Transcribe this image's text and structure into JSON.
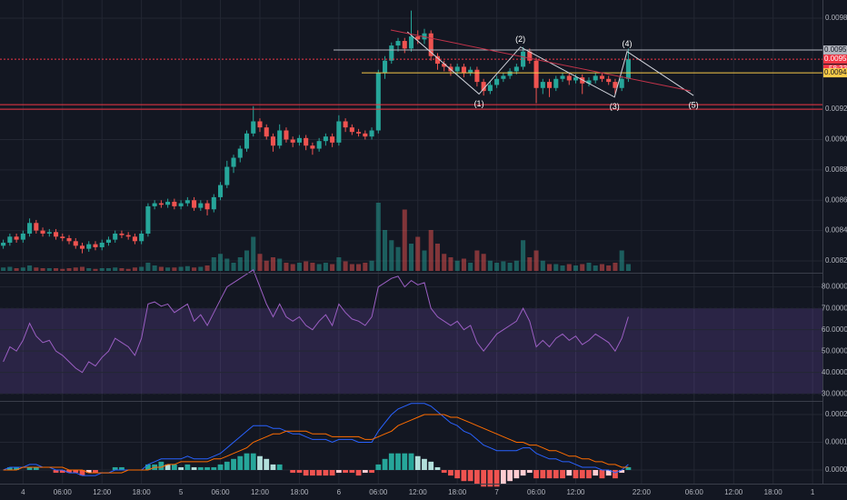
{
  "chart_data": {
    "type": "candlestick",
    "up_color": "#26a69a",
    "down_color": "#ef5350",
    "x": [
      -3,
      -2,
      -1,
      0,
      1,
      2,
      3,
      4,
      5,
      6,
      7,
      8,
      9,
      10,
      11,
      12,
      13,
      14,
      15,
      16,
      17,
      18,
      19,
      20,
      21,
      22,
      23,
      24,
      25,
      26,
      27,
      28,
      29,
      30,
      31,
      32,
      33,
      34,
      35,
      36,
      37,
      38,
      39,
      40,
      41,
      42,
      43,
      44,
      45,
      46,
      47,
      48,
      49,
      50,
      51,
      52,
      53,
      54,
      55,
      56,
      57,
      58,
      59,
      60,
      61,
      62,
      63,
      64,
      65,
      66,
      67,
      68,
      69,
      70,
      71,
      72,
      73,
      74,
      75,
      76,
      77,
      78,
      79,
      80,
      81,
      82,
      83,
      84,
      85,
      86,
      87,
      88,
      89,
      90,
      91,
      92
    ],
    "open": [
      0.0083,
      0.00832,
      0.00836,
      0.00834,
      0.00838,
      0.00845,
      0.0084,
      0.00838,
      0.00839,
      0.00836,
      0.00835,
      0.00833,
      0.0083,
      0.00828,
      0.00831,
      0.00829,
      0.00832,
      0.00834,
      0.00838,
      0.00837,
      0.00836,
      0.00833,
      0.00838,
      0.00856,
      0.00858,
      0.00857,
      0.00859,
      0.00856,
      0.00858,
      0.0086,
      0.00855,
      0.00858,
      0.00854,
      0.00862,
      0.0087,
      0.00882,
      0.00888,
      0.00894,
      0.00904,
      0.00912,
      0.00908,
      0.00902,
      0.00896,
      0.00906,
      0.009,
      0.00898,
      0.00901,
      0.00896,
      0.00894,
      0.00899,
      0.00902,
      0.00898,
      0.00912,
      0.00908,
      0.00905,
      0.00904,
      0.00902,
      0.00906,
      0.00944,
      0.00952,
      0.00962,
      0.00965,
      0.0096,
      0.00968,
      0.00966,
      0.0097,
      0.00955,
      0.0095,
      0.00948,
      0.00945,
      0.00948,
      0.00944,
      0.00946,
      0.00938,
      0.00932,
      0.00936,
      0.0094,
      0.00942,
      0.00945,
      0.00948,
      0.00958,
      0.00952,
      0.00934,
      0.00938,
      0.00934,
      0.0094,
      0.00942,
      0.00939,
      0.00941,
      0.00937,
      0.00939,
      0.00942,
      0.0094,
      0.00938,
      0.00934,
      0.0094
    ],
    "high": [
      0.00834,
      0.00838,
      0.00838,
      0.0084,
      0.00848,
      0.00847,
      0.00842,
      0.00841,
      0.00841,
      0.00838,
      0.00837,
      0.00835,
      0.00832,
      0.00833,
      0.00833,
      0.00834,
      0.00836,
      0.0084,
      0.0084,
      0.00839,
      0.00838,
      0.0084,
      0.00858,
      0.0086,
      0.0086,
      0.00861,
      0.00861,
      0.0086,
      0.00862,
      0.00862,
      0.0086,
      0.0086,
      0.00864,
      0.00872,
      0.00886,
      0.0089,
      0.00896,
      0.00906,
      0.00922,
      0.00914,
      0.0091,
      0.00904,
      0.0091,
      0.00908,
      0.00902,
      0.00903,
      0.00903,
      0.00898,
      0.00901,
      0.00904,
      0.00904,
      0.00916,
      0.00914,
      0.0091,
      0.00907,
      0.00906,
      0.00908,
      0.00946,
      0.00955,
      0.00964,
      0.00967,
      0.00967,
      0.00985,
      0.00972,
      0.00973,
      0.00972,
      0.00957,
      0.00952,
      0.0095,
      0.0095,
      0.0095,
      0.00948,
      0.00948,
      0.0094,
      0.00938,
      0.00942,
      0.00944,
      0.00947,
      0.0095,
      0.00961,
      0.0096,
      0.00954,
      0.0094,
      0.0094,
      0.00942,
      0.00944,
      0.00944,
      0.00943,
      0.00943,
      0.00941,
      0.00944,
      0.00944,
      0.00942,
      0.0094,
      0.00942,
      0.0096
    ],
    "low": [
      0.00828,
      0.0083,
      0.00832,
      0.00832,
      0.00836,
      0.00838,
      0.00836,
      0.00836,
      0.00834,
      0.00833,
      0.00831,
      0.00828,
      0.00825,
      0.00826,
      0.00827,
      0.00827,
      0.0083,
      0.00832,
      0.00835,
      0.00834,
      0.00831,
      0.00831,
      0.00836,
      0.00854,
      0.00855,
      0.00855,
      0.00854,
      0.00854,
      0.00856,
      0.00853,
      0.00853,
      0.0085,
      0.00852,
      0.0086,
      0.00868,
      0.00878,
      0.00885,
      0.00892,
      0.00902,
      0.00905,
      0.009,
      0.00892,
      0.00894,
      0.00898,
      0.00895,
      0.00896,
      0.00893,
      0.0089,
      0.00892,
      0.00896,
      0.00895,
      0.00896,
      0.00905,
      0.00903,
      0.00902,
      0.009,
      0.009,
      0.00904,
      0.0094,
      0.0095,
      0.00958,
      0.00957,
      0.00958,
      0.00963,
      0.00963,
      0.00952,
      0.00946,
      0.00945,
      0.00942,
      0.00943,
      0.00941,
      0.00942,
      0.00935,
      0.00929,
      0.0093,
      0.00934,
      0.00938,
      0.0094,
      0.00943,
      0.00946,
      0.0095,
      0.00924,
      0.0093,
      0.00928,
      0.00932,
      0.00938,
      0.00936,
      0.00937,
      0.0093,
      0.00935,
      0.00937,
      0.00938,
      0.00936,
      0.0093,
      0.00932,
      0.00938
    ],
    "close": [
      0.00832,
      0.00836,
      0.00834,
      0.00838,
      0.00845,
      0.0084,
      0.00838,
      0.00839,
      0.00836,
      0.00835,
      0.00833,
      0.0083,
      0.00828,
      0.00831,
      0.00829,
      0.00832,
      0.00834,
      0.00838,
      0.00837,
      0.00836,
      0.00833,
      0.00838,
      0.00856,
      0.00858,
      0.00857,
      0.00859,
      0.00856,
      0.00858,
      0.0086,
      0.00855,
      0.00858,
      0.00854,
      0.00862,
      0.0087,
      0.00882,
      0.00888,
      0.00894,
      0.00904,
      0.00912,
      0.00908,
      0.00902,
      0.00896,
      0.00906,
      0.009,
      0.00898,
      0.00901,
      0.00896,
      0.00894,
      0.00899,
      0.00902,
      0.00898,
      0.00912,
      0.00908,
      0.00905,
      0.00904,
      0.00902,
      0.00906,
      0.00944,
      0.00952,
      0.00962,
      0.00965,
      0.0096,
      0.00968,
      0.00966,
      0.0097,
      0.00955,
      0.0095,
      0.00948,
      0.00945,
      0.00948,
      0.00944,
      0.00946,
      0.00938,
      0.00932,
      0.00936,
      0.0094,
      0.00942,
      0.00945,
      0.00948,
      0.00958,
      0.00952,
      0.00934,
      0.00938,
      0.00934,
      0.0094,
      0.00942,
      0.00939,
      0.00941,
      0.00937,
      0.00939,
      0.00942,
      0.0094,
      0.00938,
      0.00934,
      0.0094,
      0.00953
    ],
    "volume": [
      5,
      6,
      4,
      5,
      8,
      5,
      4,
      4,
      4,
      3,
      4,
      5,
      6,
      4,
      3,
      4,
      4,
      5,
      4,
      3,
      5,
      6,
      12,
      8,
      6,
      5,
      5,
      6,
      7,
      5,
      6,
      8,
      20,
      25,
      18,
      12,
      20,
      30,
      50,
      25,
      15,
      20,
      18,
      12,
      10,
      12,
      14,
      12,
      10,
      12,
      10,
      20,
      14,
      10,
      10,
      12,
      15,
      100,
      60,
      45,
      35,
      90,
      40,
      50,
      30,
      60,
      40,
      25,
      20,
      15,
      18,
      12,
      30,
      25,
      15,
      12,
      14,
      12,
      15,
      45,
      20,
      30,
      15,
      10,
      10,
      8,
      10,
      8,
      10,
      12,
      8,
      10,
      8,
      12,
      30,
      10
    ],
    "xlim": [
      -3.5,
      121.5
    ],
    "xticks": [
      {
        "value": 0,
        "label": "4"
      },
      {
        "value": 6,
        "label": "06:00"
      },
      {
        "value": 12,
        "label": "12:00"
      },
      {
        "value": 18,
        "label": "18:00"
      },
      {
        "value": 24,
        "label": "5"
      },
      {
        "value": 30,
        "label": "06:00"
      },
      {
        "value": 36,
        "label": "12:00"
      },
      {
        "value": 42,
        "label": "18:00"
      },
      {
        "value": 48,
        "label": "6"
      },
      {
        "value": 54,
        "label": "06:00"
      },
      {
        "value": 60,
        "label": "12:00"
      },
      {
        "value": 66,
        "label": "18:00"
      },
      {
        "value": 72,
        "label": "7"
      },
      {
        "value": 78,
        "label": "06:00"
      },
      {
        "value": 84,
        "label": "12:00"
      },
      {
        "value": 94,
        "label": "22:00"
      },
      {
        "value": 102,
        "label": "06:00"
      },
      {
        "value": 108,
        "label": "12:00"
      },
      {
        "value": 114,
        "label": "18:00"
      },
      {
        "value": 120,
        "label": "1"
      }
    ],
    "ylim": [
      0.008122,
      0.00992
    ],
    "yticks": [
      {
        "value": 0.0098,
        "label": "0.00980"
      },
      {
        "value": 0.0092,
        "label": "0.00920"
      },
      {
        "value": 0.009,
        "label": "0.00900"
      },
      {
        "value": 0.0088,
        "label": "0.00880"
      },
      {
        "value": 0.0086,
        "label": "0.00860"
      },
      {
        "value": 0.0084,
        "label": "0.00840"
      },
      {
        "value": 0.0082,
        "label": "0.00820"
      }
    ],
    "grid": true,
    "levels": [
      {
        "value": 0.00959,
        "label": "0.00959",
        "color": "#b2b5be"
      },
      {
        "value": 0.00953,
        "label": "0.00953",
        "color": "#f23645",
        "countdown": "58:33"
      },
      {
        "value": 0.00944,
        "label": "0.00944",
        "color": "#f7c948"
      },
      {
        "value": 0.00923,
        "color": "#f23645"
      },
      {
        "value": 0.0092,
        "color": "#f23645"
      }
    ],
    "waves": [
      {
        "label": null,
        "x": 58.4,
        "price": 0.00971
      },
      {
        "label": "(1)",
        "x": 69.3,
        "price": 0.0093
      },
      {
        "label": "(2)",
        "x": 75.6,
        "price": 0.00961
      },
      {
        "label": "(3)",
        "x": 89.9,
        "price": 0.00928
      },
      {
        "label": "(4)",
        "x": 91.8,
        "price": 0.00958
      },
      {
        "label": "(5)",
        "x": 101.9,
        "price": 0.00929
      }
    ],
    "rsi": {
      "color": "#9c5fc4",
      "values": [
        45,
        52,
        50,
        55,
        63,
        57,
        54,
        55,
        50,
        48,
        45,
        42,
        40,
        45,
        43,
        47,
        50,
        56,
        54,
        52,
        48,
        56,
        72,
        73,
        71,
        72,
        68,
        70,
        72,
        64,
        67,
        62,
        68,
        74,
        80,
        82,
        84,
        86,
        88,
        80,
        72,
        66,
        72,
        66,
        64,
        66,
        62,
        60,
        64,
        67,
        62,
        72,
        68,
        65,
        64,
        62,
        66,
        80,
        82,
        84,
        85,
        80,
        83,
        81,
        82,
        70,
        66,
        64,
        62,
        64,
        60,
        62,
        54,
        50,
        54,
        58,
        60,
        62,
        64,
        70,
        64,
        52,
        55,
        52,
        56,
        58,
        55,
        57,
        53,
        55,
        58,
        56,
        54,
        50,
        56,
        66
      ],
      "band": [
        30,
        70
      ],
      "ylim": [
        27.1,
        85.8
      ],
      "yticks": [
        {
          "value": 80,
          "label": "80.0000"
        },
        {
          "value": 70,
          "label": "70.0000"
        },
        {
          "value": 60,
          "label": "60.0000"
        },
        {
          "value": 50,
          "label": "50.0000"
        },
        {
          "value": 40,
          "label": "40.0000"
        },
        {
          "value": 30,
          "label": "30.0000"
        }
      ]
    },
    "macd": {
      "macd_color": "#2962ff",
      "signal_color": "#ff6d00",
      "macd": [
        0,
        1e-05,
        1e-05,
        1e-05,
        2e-05,
        2e-05,
        1e-05,
        1e-05,
        0,
        0,
        -1e-05,
        -1e-05,
        -2e-05,
        -2e-05,
        -2e-05,
        -1e-05,
        -1e-05,
        0,
        0,
        0,
        0,
        0,
        2e-05,
        3e-05,
        4e-05,
        4e-05,
        4e-05,
        4e-05,
        5e-05,
        4e-05,
        4e-05,
        4e-05,
        5e-05,
        6e-05,
        8e-05,
        0.0001,
        0.00012,
        0.00014,
        0.00016,
        0.00016,
        0.00016,
        0.00015,
        0.00015,
        0.00014,
        0.00013,
        0.00013,
        0.00012,
        0.00011,
        0.00011,
        0.00011,
        0.0001,
        0.00011,
        0.00011,
        0.00011,
        0.0001,
        0.0001,
        0.0001,
        0.00014,
        0.00017,
        0.0002,
        0.00022,
        0.00023,
        0.00024,
        0.00024,
        0.00024,
        0.00023,
        0.00021,
        0.00019,
        0.00017,
        0.00016,
        0.00014,
        0.00013,
        0.00011,
        9e-05,
        8e-05,
        7e-05,
        7e-05,
        7e-05,
        7e-05,
        8e-05,
        8e-05,
        6e-05,
        5e-05,
        4e-05,
        4e-05,
        3e-05,
        3e-05,
        2e-05,
        1e-05,
        1e-05,
        1e-05,
        0,
        0,
        -1e-05,
        0,
        2e-05
      ],
      "signal": [
        0,
        0,
        0,
        1e-05,
        1e-05,
        1e-05,
        1e-05,
        1e-05,
        1e-05,
        1e-05,
        0,
        0,
        0,
        -1e-05,
        -1e-05,
        -1e-05,
        -1e-05,
        -1e-05,
        -1e-05,
        0,
        0,
        0,
        0,
        1e-05,
        1e-05,
        2e-05,
        2e-05,
        3e-05,
        3e-05,
        3e-05,
        3e-05,
        3e-05,
        4e-05,
        4e-05,
        5e-05,
        6e-05,
        7e-05,
        8e-05,
        0.0001,
        0.00011,
        0.00012,
        0.00013,
        0.00013,
        0.00014,
        0.00014,
        0.00014,
        0.00014,
        0.00013,
        0.00013,
        0.00013,
        0.00012,
        0.00012,
        0.00012,
        0.00012,
        0.00012,
        0.00011,
        0.00011,
        0.00012,
        0.00013,
        0.00014,
        0.00016,
        0.00017,
        0.00018,
        0.00019,
        0.0002,
        0.0002,
        0.0002,
        0.0002,
        0.00019,
        0.00019,
        0.00018,
        0.00017,
        0.00016,
        0.00015,
        0.00014,
        0.00013,
        0.00012,
        0.00011,
        0.0001,
        0.0001,
        9e-05,
        9e-05,
        8e-05,
        7e-05,
        7e-05,
        6e-05,
        5e-05,
        5e-05,
        4e-05,
        4e-05,
        3e-05,
        3e-05,
        2e-05,
        2e-05,
        1e-05,
        1e-05
      ],
      "histogram": [
        0,
        1e-05,
        1e-05,
        0,
        1e-05,
        1e-05,
        0,
        0,
        -1e-05,
        -1e-05,
        -1e-05,
        -1e-05,
        -2e-05,
        -1e-05,
        -1e-05,
        0,
        0,
        1e-05,
        1e-05,
        0,
        0,
        0,
        2e-05,
        2e-05,
        3e-05,
        2e-05,
        2e-05,
        1e-05,
        2e-05,
        1e-05,
        1e-05,
        1e-05,
        1e-05,
        2e-05,
        3e-05,
        4e-05,
        5e-05,
        6e-05,
        6e-05,
        5e-05,
        4e-05,
        2e-05,
        2e-05,
        0,
        -1e-05,
        -1e-05,
        -2e-05,
        -2e-05,
        -2e-05,
        -2e-05,
        -2e-05,
        -1e-05,
        -1e-05,
        -1e-05,
        -2e-05,
        -1e-05,
        -1e-05,
        2e-05,
        4e-05,
        6e-05,
        6e-05,
        6e-05,
        6e-05,
        5e-05,
        4e-05,
        3e-05,
        1e-05,
        -1e-05,
        -2e-05,
        -3e-05,
        -4e-05,
        -4e-05,
        -5e-05,
        -6e-05,
        -6e-05,
        -6e-05,
        -5e-05,
        -4e-05,
        -3e-05,
        -2e-05,
        -1e-05,
        -3e-05,
        -3e-05,
        -3e-05,
        -3e-05,
        -3e-05,
        -2e-05,
        -3e-05,
        -3e-05,
        -3e-05,
        -2e-05,
        -3e-05,
        -2e-05,
        -3e-05,
        -1e-05,
        1e-05
      ],
      "ylim": [
        -4.26e-05,
        0.0002426
      ],
      "yticks": [
        0.0002,
        0.0001,
        {
          "value": 0,
          "label": "0.0000"
        }
      ]
    }
  }
}
